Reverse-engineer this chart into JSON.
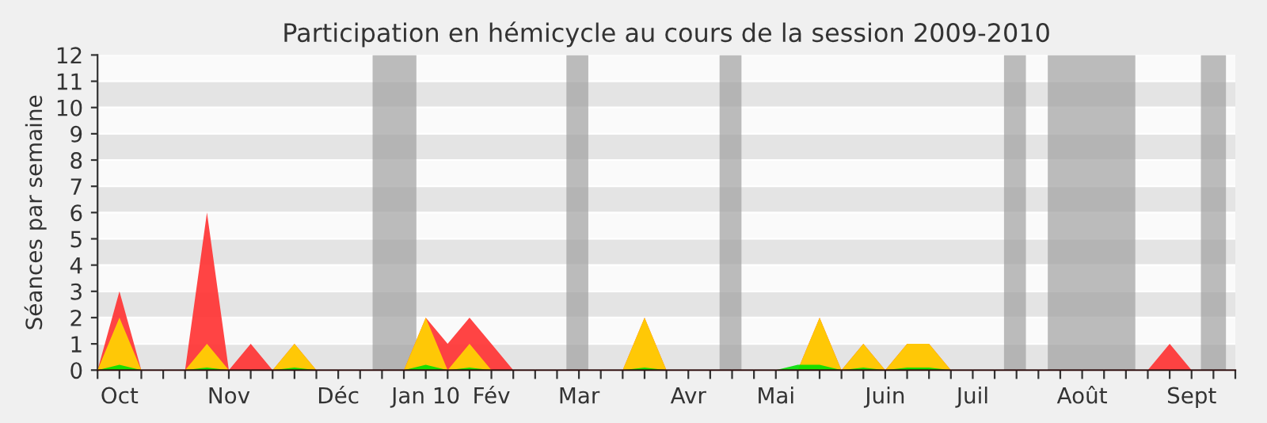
{
  "chart_data": {
    "type": "area",
    "title": "Participation en hémicycle au cours de la session 2009-2010",
    "ylabel": "Séances par semaine",
    "x": [
      "2009-09-28",
      "2009-10-05",
      "2009-10-12",
      "2009-10-19",
      "2009-10-26",
      "2009-11-02",
      "2009-11-09",
      "2009-11-16",
      "2009-11-23",
      "2009-11-30",
      "2009-12-07",
      "2009-12-14",
      "2009-12-21",
      "2009-12-28",
      "2010-01-04",
      "2010-01-11",
      "2010-01-18",
      "2010-01-25",
      "2010-02-01",
      "2010-02-08",
      "2010-02-15",
      "2010-02-22",
      "2010-03-01",
      "2010-03-08",
      "2010-03-15",
      "2010-03-22",
      "2010-03-29",
      "2010-04-05",
      "2010-04-12",
      "2010-04-19",
      "2010-04-26",
      "2010-05-03",
      "2010-05-10",
      "2010-05-17",
      "2010-05-24",
      "2010-05-31",
      "2010-06-07",
      "2010-06-14",
      "2010-06-21",
      "2010-06-28",
      "2010-07-05",
      "2010-07-12",
      "2010-07-19",
      "2010-07-26",
      "2010-08-02",
      "2010-08-09",
      "2010-08-16",
      "2010-08-23",
      "2010-08-30",
      "2010-09-06",
      "2010-09-13",
      "2010-09-20",
      "2010-09-27"
    ],
    "series": [
      {
        "color": "#ff3030",
        "values": [
          0,
          3,
          0,
          0,
          0,
          6,
          0,
          1,
          0,
          1,
          0,
          0,
          0,
          0,
          0,
          2,
          1,
          2,
          1,
          0,
          0,
          0,
          0,
          0,
          0,
          2,
          0,
          0,
          0,
          0,
          0,
          0,
          0,
          2,
          0,
          1,
          0,
          1,
          1,
          0,
          0,
          0,
          0,
          0,
          0,
          0,
          0,
          0,
          0,
          1,
          0,
          0,
          0
        ]
      },
      {
        "color": "#ffd700",
        "values": [
          0,
          2,
          0,
          0,
          0,
          1,
          0,
          0,
          0,
          1,
          0,
          0,
          0,
          0,
          0,
          2,
          0,
          1,
          0,
          0,
          0,
          0,
          0,
          0,
          0,
          2,
          0,
          0,
          0,
          0,
          0,
          0,
          0,
          2,
          0,
          1,
          0,
          1,
          1,
          0,
          0,
          0,
          0,
          0,
          0,
          0,
          0,
          0,
          0,
          0,
          0,
          0,
          0
        ]
      },
      {
        "color": "#00e000",
        "values": [
          0,
          0.2,
          0,
          0,
          0,
          0.1,
          0,
          0,
          0,
          0.1,
          0,
          0,
          0,
          0,
          0,
          0.2,
          0,
          0.1,
          0,
          0,
          0,
          0,
          0,
          0,
          0,
          0.1,
          0,
          0,
          0,
          0,
          0,
          0,
          0.2,
          0.2,
          0,
          0.1,
          0,
          0.1,
          0.1,
          0,
          0,
          0,
          0,
          0,
          0,
          0,
          0,
          0,
          0,
          0,
          0,
          0,
          0
        ]
      }
    ],
    "xlim": [
      "2009-09-28",
      "2010-09-27"
    ],
    "xticks": [
      {
        "value": "2009-09-28",
        "label": null
      },
      {
        "value": "2009-10-05",
        "label": "Oct"
      },
      {
        "value": "2009-10-12",
        "label": null
      },
      {
        "value": "2009-10-19",
        "label": null
      },
      {
        "value": "2009-10-26",
        "label": null
      },
      {
        "value": "2009-11-02",
        "label": null
      },
      {
        "value": "2009-11-09",
        "label": "Nov"
      },
      {
        "value": "2009-11-16",
        "label": null
      },
      {
        "value": "2009-11-23",
        "label": null
      },
      {
        "value": "2009-11-30",
        "label": null
      },
      {
        "value": "2009-12-07",
        "label": null
      },
      {
        "value": "2009-12-14",
        "label": "Déc"
      },
      {
        "value": "2009-12-21",
        "label": null
      },
      {
        "value": "2009-12-28",
        "label": null
      },
      {
        "value": "2010-01-04",
        "label": null
      },
      {
        "value": "2010-01-11",
        "label": "Jan 10"
      },
      {
        "value": "2010-01-18",
        "label": null
      },
      {
        "value": "2010-01-25",
        "label": null
      },
      {
        "value": "2010-02-01",
        "label": "Fév"
      },
      {
        "value": "2010-02-08",
        "label": null
      },
      {
        "value": "2010-02-15",
        "label": null
      },
      {
        "value": "2010-02-22",
        "label": null
      },
      {
        "value": "2010-03-01",
        "label": "Mar"
      },
      {
        "value": "2010-03-08",
        "label": null
      },
      {
        "value": "2010-03-15",
        "label": null
      },
      {
        "value": "2010-03-22",
        "label": null
      },
      {
        "value": "2010-03-29",
        "label": null
      },
      {
        "value": "2010-04-05",
        "label": "Avr"
      },
      {
        "value": "2010-04-12",
        "label": null
      },
      {
        "value": "2010-04-19",
        "label": null
      },
      {
        "value": "2010-04-26",
        "label": null
      },
      {
        "value": "2010-05-03",
        "label": "Mai"
      },
      {
        "value": "2010-05-10",
        "label": null
      },
      {
        "value": "2010-05-17",
        "label": null
      },
      {
        "value": "2010-05-24",
        "label": null
      },
      {
        "value": "2010-05-31",
        "label": null
      },
      {
        "value": "2010-06-07",
        "label": "Juin"
      },
      {
        "value": "2010-06-14",
        "label": null
      },
      {
        "value": "2010-06-21",
        "label": null
      },
      {
        "value": "2010-06-28",
        "label": null
      },
      {
        "value": "2010-07-05",
        "label": "Juil"
      },
      {
        "value": "2010-07-12",
        "label": null
      },
      {
        "value": "2010-07-19",
        "label": null
      },
      {
        "value": "2010-07-26",
        "label": null
      },
      {
        "value": "2010-08-02",
        "label": null
      },
      {
        "value": "2010-08-09",
        "label": "Août"
      },
      {
        "value": "2010-08-16",
        "label": null
      },
      {
        "value": "2010-08-23",
        "label": null
      },
      {
        "value": "2010-08-30",
        "label": null
      },
      {
        "value": "2010-09-06",
        "label": null
      },
      {
        "value": "2010-09-13",
        "label": "Sept"
      },
      {
        "value": "2010-09-20",
        "label": null
      },
      {
        "value": "2010-09-27",
        "label": null
      }
    ],
    "ylim": [
      0,
      12
    ],
    "yticks": [
      0,
      1,
      2,
      3,
      4,
      5,
      6,
      7,
      8,
      9,
      10,
      11,
      12
    ],
    "grid": "y",
    "legend": false,
    "bands": [
      {
        "axis": "x",
        "from": "2009-12-25",
        "to": "2010-01-08",
        "color": "#a0a0a0"
      },
      {
        "axis": "x",
        "from": "2010-02-25",
        "to": "2010-03-04",
        "color": "#a0a0a0"
      },
      {
        "axis": "x",
        "from": "2010-04-15",
        "to": "2010-04-22",
        "color": "#a0a0a0"
      },
      {
        "axis": "x",
        "from": "2010-07-15",
        "to": "2010-07-22",
        "color": "#a0a0a0"
      },
      {
        "axis": "x",
        "from": "2010-07-29",
        "to": "2010-08-26",
        "color": "#a0a0a0"
      },
      {
        "axis": "x",
        "from": "2010-09-16",
        "to": "2010-09-24",
        "color": "#a0a0a0"
      }
    ]
  }
}
